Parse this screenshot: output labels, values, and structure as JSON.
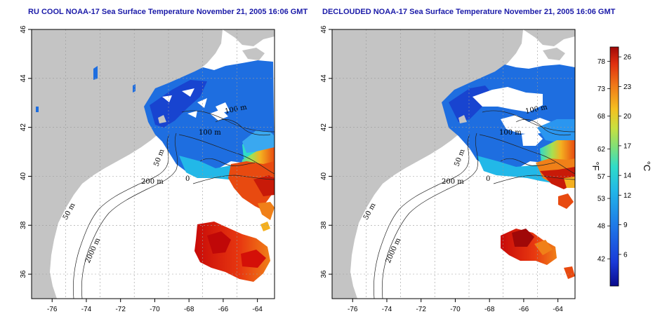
{
  "panels": [
    {
      "title": "RU COOL NOAA-17 Sea Surface Temperature November 21, 2005 16:06 GMT"
    },
    {
      "title": "DECLOUDED NOAA-17 Sea Surface Temperature November 21, 2005 16:06 GMT"
    }
  ],
  "axes": {
    "lon_ticks": [
      "-76",
      "-74",
      "-72",
      "-70",
      "-68",
      "-66",
      "-64"
    ],
    "lat_ticks": [
      "36",
      "38",
      "40",
      "42",
      "44",
      "46"
    ],
    "lon_range": [
      -77.2,
      -63.0
    ],
    "lat_range": [
      35.0,
      46.0
    ]
  },
  "contour_labels": {
    "m100": "100 m",
    "m50": "50 m",
    "m200": "200 m",
    "m2000": "2000 m",
    "m0": "0"
  },
  "colorbar": {
    "fahrenheit_ticks": [
      "78",
      "73",
      "68",
      "62",
      "57",
      "53",
      "48",
      "42"
    ],
    "celsius_ticks": [
      "26",
      "23",
      "20",
      "17",
      "14",
      "12",
      "9",
      "6"
    ],
    "fahrenheit_label": "°F",
    "celsius_label": "°C",
    "colors": [
      "#0a0a8c",
      "#1a3ad8",
      "#1e78e8",
      "#22b8e8",
      "#30dcc8",
      "#7ee07a",
      "#c8e040",
      "#f4c020",
      "#f07818",
      "#e03010",
      "#a00808"
    ]
  },
  "colors": {
    "land": "#c4c4c4",
    "ocean": "#ffffff",
    "grid": "#9a9a9a",
    "title": "#1a1aa8"
  }
}
